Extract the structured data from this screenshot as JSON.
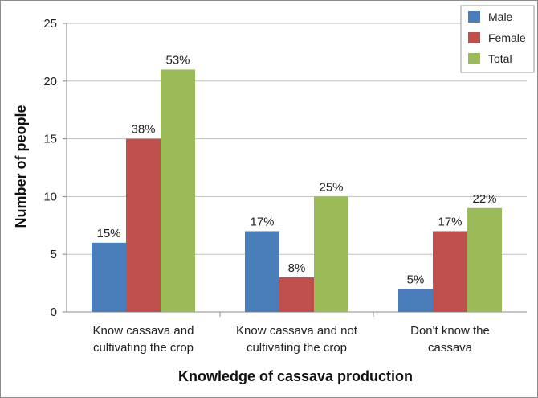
{
  "chart_data": {
    "type": "bar",
    "title": "",
    "xlabel": "Knowledge of cassava production",
    "ylabel": "Number of people",
    "ylim": [
      0,
      25
    ],
    "yticks": [
      0,
      5,
      10,
      15,
      20,
      25
    ],
    "grid": true,
    "legend_position": "top-right",
    "categories": [
      [
        "Know cassava and",
        "cultivating the crop"
      ],
      [
        "Know cassava and not",
        "cultivating the crop"
      ],
      [
        "Don't know the",
        "cassava"
      ]
    ],
    "series": [
      {
        "name": "Male",
        "color": "#4a7ebb",
        "values": [
          6,
          7,
          2
        ],
        "labels": [
          "15%",
          "17%",
          "5%"
        ]
      },
      {
        "name": "Female",
        "color": "#c0504d",
        "values": [
          15,
          3,
          7
        ],
        "labels": [
          "38%",
          "8%",
          "17%"
        ]
      },
      {
        "name": "Total",
        "color": "#9bbb59",
        "values": [
          21,
          10,
          9
        ],
        "labels": [
          "53%",
          "25%",
          "22%"
        ]
      }
    ]
  }
}
